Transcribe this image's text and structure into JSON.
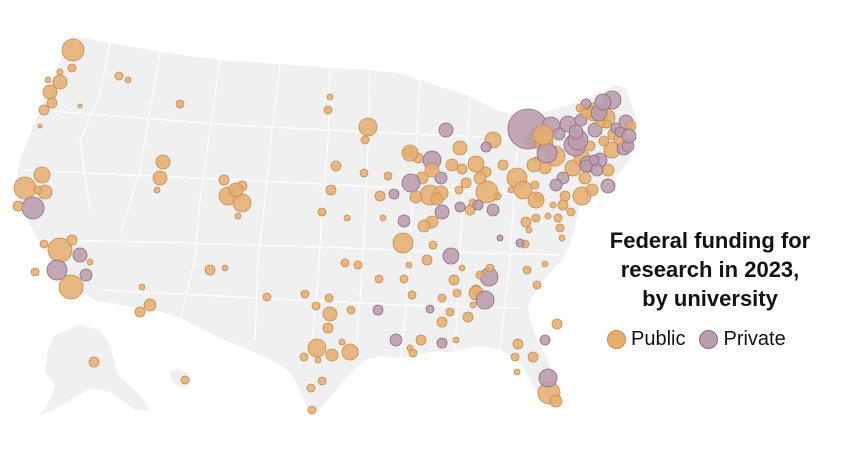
{
  "title_lines": [
    "Federal funding for",
    "research in 2023,",
    "by university"
  ],
  "legend": {
    "public_label": "Public",
    "private_label": "Private"
  },
  "colors": {
    "public_fill": "#e6ad6f",
    "public_stroke": "#c58d50",
    "private_fill": "#b99cad",
    "private_stroke": "#8a6e80",
    "land": "#f0f0f0",
    "borders": "#ffffff"
  },
  "markers": [
    {
      "type": "public",
      "r": 11
    },
    {
      "type": "public",
      "r": 7
    },
    {
      "type": "public",
      "r": 7
    },
    {
      "type": "public",
      "r": 5
    },
    {
      "type": "public",
      "r": 5
    },
    {
      "type": "public",
      "r": 4
    },
    {
      "type": "public",
      "r": 3
    },
    {
      "type": "public",
      "r": 3
    },
    {
      "type": "public",
      "r": 4
    },
    {
      "type": "public",
      "r": 3
    },
    {
      "type": "public",
      "r": 2
    },
    {
      "type": "public",
      "r": 2
    },
    {
      "type": "public",
      "r": 11
    },
    {
      "type": "public",
      "r": 8
    },
    {
      "type": "private",
      "r": 11
    },
    {
      "type": "public",
      "r": 7
    },
    {
      "type": "public",
      "r": 5
    },
    {
      "type": "public",
      "r": 4
    },
    {
      "type": "public",
      "r": 12
    },
    {
      "type": "private",
      "r": 10
    },
    {
      "type": "private",
      "r": 7
    },
    {
      "type": "public",
      "r": 12
    },
    {
      "type": "private",
      "r": 6
    },
    {
      "type": "public",
      "r": 5
    },
    {
      "type": "public",
      "r": 4
    },
    {
      "type": "public",
      "r": 4
    },
    {
      "type": "public",
      "r": 3
    },
    {
      "type": "public",
      "r": 7
    },
    {
      "type": "public",
      "r": 7
    },
    {
      "type": "public",
      "r": 3
    },
    {
      "type": "public",
      "r": 4
    },
    {
      "type": "public",
      "r": 9
    },
    {
      "type": "public",
      "r": 5
    },
    {
      "type": "public",
      "r": 9
    },
    {
      "type": "public",
      "r": 7
    },
    {
      "type": "public",
      "r": 5
    },
    {
      "type": "public",
      "r": 3
    },
    {
      "type": "public",
      "r": 5
    },
    {
      "type": "public",
      "r": 4
    },
    {
      "type": "public",
      "r": 3
    },
    {
      "type": "public",
      "r": 4
    },
    {
      "type": "public",
      "r": 4
    },
    {
      "type": "public",
      "r": 3
    },
    {
      "type": "public",
      "r": 5
    },
    {
      "type": "public",
      "r": 4
    },
    {
      "type": "public",
      "r": 3
    },
    {
      "type": "public",
      "r": 5
    },
    {
      "type": "public",
      "r": 3
    },
    {
      "type": "public",
      "r": 6
    },
    {
      "type": "public",
      "r": 5
    },
    {
      "type": "public",
      "r": 4
    },
    {
      "type": "public",
      "r": 4
    },
    {
      "type": "public",
      "r": 9
    },
    {
      "type": "public",
      "r": 7
    },
    {
      "type": "public",
      "r": 8
    },
    {
      "type": "public",
      "r": 4
    },
    {
      "type": "public",
      "r": 4
    },
    {
      "type": "public",
      "r": 4
    },
    {
      "type": "public",
      "r": 3
    },
    {
      "type": "private",
      "r": 8
    },
    {
      "type": "public",
      "r": 3
    },
    {
      "type": "public",
      "r": 9
    },
    {
      "type": "public",
      "r": 4
    },
    {
      "type": "private",
      "r": 9
    },
    {
      "type": "private",
      "r": 6
    },
    {
      "type": "public",
      "r": 5
    },
    {
      "type": "public",
      "r": 5
    },
    {
      "type": "private",
      "r": 6
    },
    {
      "type": "public",
      "r": 8
    },
    {
      "type": "public",
      "r": 10
    },
    {
      "type": "public",
      "r": 7
    },
    {
      "type": "private",
      "r": 7
    },
    {
      "type": "public",
      "r": 7
    },
    {
      "type": "public",
      "r": 6
    },
    {
      "type": "public",
      "r": 5
    },
    {
      "type": "public",
      "r": 8
    },
    {
      "type": "public",
      "r": 5
    },
    {
      "type": "public",
      "r": 5
    },
    {
      "type": "public",
      "r": 4
    },
    {
      "type": "public",
      "r": 3
    },
    {
      "type": "public",
      "r": 11
    },
    {
      "type": "public",
      "r": 5
    },
    {
      "type": "public",
      "r": 4
    },
    {
      "type": "private",
      "r": 6
    },
    {
      "type": "public",
      "r": 6
    },
    {
      "type": "public",
      "r": 10
    },
    {
      "type": "public",
      "r": 9
    },
    {
      "type": "public",
      "r": 5
    },
    {
      "type": "public",
      "r": 4
    },
    {
      "type": "public",
      "r": 3
    },
    {
      "type": "public",
      "r": 4
    },
    {
      "type": "public",
      "r": 4
    },
    {
      "type": "private",
      "r": 9
    },
    {
      "type": "public",
      "r": 4
    },
    {
      "type": "public",
      "r": 5
    },
    {
      "type": "public",
      "r": 3
    },
    {
      "type": "public",
      "r": 4
    },
    {
      "type": "public",
      "r": 5
    },
    {
      "type": "public",
      "r": 7
    },
    {
      "type": "public",
      "r": 4
    },
    {
      "type": "public",
      "r": 3
    },
    {
      "type": "public",
      "r": 4
    },
    {
      "type": "private",
      "r": 9
    },
    {
      "type": "public",
      "r": 5
    },
    {
      "type": "private",
      "r": 3
    },
    {
      "type": "private",
      "r": 4
    },
    {
      "type": "public",
      "r": 3
    },
    {
      "type": "public",
      "r": 4
    },
    {
      "type": "public",
      "r": 4
    },
    {
      "type": "public",
      "r": 5
    },
    {
      "type": "public",
      "r": 4
    },
    {
      "type": "public",
      "r": 3
    },
    {
      "type": "public",
      "r": 11
    },
    {
      "type": "public",
      "r": 6
    },
    {
      "type": "private",
      "r": 9
    },
    {
      "type": "public",
      "r": 5
    },
    {
      "type": "private",
      "r": 5
    },
    {
      "type": "public",
      "r": 5
    },
    {
      "type": "public",
      "r": 3
    },
    {
      "type": "public",
      "r": 4
    },
    {
      "type": "public",
      "r": 4
    },
    {
      "type": "public",
      "r": 3
    },
    {
      "type": "public",
      "r": 3
    },
    {
      "type": "public",
      "r": 5
    },
    {
      "type": "public",
      "r": 4
    },
    {
      "type": "public",
      "r": 8
    },
    {
      "type": "public",
      "r": 4
    },
    {
      "type": "public",
      "r": 3
    },
    {
      "type": "public",
      "r": 6
    },
    {
      "type": "public",
      "r": 9
    },
    {
      "type": "public",
      "r": 10
    },
    {
      "type": "public",
      "r": 8
    },
    {
      "type": "private",
      "r": 6
    },
    {
      "type": "private",
      "r": 6
    },
    {
      "type": "public",
      "r": 5
    },
    {
      "type": "public",
      "r": 9
    },
    {
      "type": "public",
      "r": 6
    },
    {
      "type": "public",
      "r": 8
    },
    {
      "type": "private",
      "r": 11
    },
    {
      "type": "public",
      "r": 5
    },
    {
      "type": "private",
      "r": 7
    },
    {
      "type": "public",
      "r": 10
    },
    {
      "type": "public",
      "r": 6
    },
    {
      "type": "private",
      "r": 10
    },
    {
      "type": "private",
      "r": 8
    },
    {
      "type": "public",
      "r": 8
    },
    {
      "type": "private",
      "r": 7
    },
    {
      "type": "public",
      "r": 6
    },
    {
      "type": "private",
      "r": 7
    },
    {
      "type": "public",
      "r": 6
    },
    {
      "type": "private",
      "r": 20
    },
    {
      "type": "public",
      "r": 9
    },
    {
      "type": "private",
      "r": 9
    },
    {
      "type": "private",
      "r": 6
    },
    {
      "type": "public",
      "r": 7
    },
    {
      "type": "private",
      "r": 10
    },
    {
      "type": "public",
      "r": 10
    },
    {
      "type": "private",
      "r": 8
    },
    {
      "type": "private",
      "r": 7
    },
    {
      "type": "public",
      "r": 9
    },
    {
      "type": "private",
      "r": 7
    },
    {
      "type": "public",
      "r": 7
    },
    {
      "type": "private",
      "r": 6
    },
    {
      "type": "private",
      "r": 9
    },
    {
      "type": "private",
      "r": 6
    },
    {
      "type": "public",
      "r": 7
    },
    {
      "type": "private",
      "r": 8
    },
    {
      "type": "private",
      "r": 8
    },
    {
      "type": "private",
      "r": 5
    },
    {
      "type": "private",
      "r": 5
    },
    {
      "type": "public",
      "r": 5
    },
    {
      "type": "private",
      "r": 5
    },
    {
      "type": "public",
      "r": 5
    },
    {
      "type": "private",
      "r": 7
    },
    {
      "type": "private",
      "r": 5
    },
    {
      "type": "private",
      "r": 6
    },
    {
      "type": "private",
      "r": 7
    },
    {
      "type": "private",
      "r": 6
    },
    {
      "type": "public",
      "r": 4
    },
    {
      "type": "public",
      "r": 4
    },
    {
      "type": "public",
      "r": 8
    },
    {
      "type": "private",
      "r": 5
    },
    {
      "type": "public",
      "r": 6
    },
    {
      "type": "public",
      "r": 5
    },
    {
      "type": "public",
      "r": 4
    },
    {
      "type": "private",
      "r": 5
    },
    {
      "type": "private",
      "r": 5
    },
    {
      "type": "public",
      "r": 7
    },
    {
      "type": "public",
      "r": 6
    },
    {
      "type": "private",
      "r": 9
    },
    {
      "type": "public",
      "r": 6
    },
    {
      "type": "private",
      "r": 7
    },
    {
      "type": "public",
      "r": 6
    },
    {
      "type": "private",
      "r": 5
    },
    {
      "type": "public",
      "r": 5
    },
    {
      "type": "public",
      "r": 10
    },
    {
      "type": "public",
      "r": 6
    },
    {
      "type": "public",
      "r": 5
    },
    {
      "type": "public",
      "r": 4
    },
    {
      "type": "public",
      "r": 4
    },
    {
      "type": "private",
      "r": 4
    },
    {
      "type": "public",
      "r": 5
    },
    {
      "type": "public",
      "r": 4
    },
    {
      "type": "public",
      "r": 4
    },
    {
      "type": "public",
      "r": 3
    },
    {
      "type": "private",
      "r": 5
    },
    {
      "type": "public",
      "r": 4
    },
    {
      "type": "public",
      "r": 5
    },
    {
      "type": "private",
      "r": 6
    },
    {
      "type": "private",
      "r": 5
    },
    {
      "type": "public",
      "r": 4
    },
    {
      "type": "public",
      "r": 4
    },
    {
      "type": "public",
      "r": 3
    },
    {
      "type": "public",
      "r": 5
    },
    {
      "type": "public",
      "r": 4
    },
    {
      "type": "public",
      "r": 4
    },
    {
      "type": "public",
      "r": 3
    },
    {
      "type": "public",
      "r": 6
    },
    {
      "type": "public",
      "r": 4
    },
    {
      "type": "public",
      "r": 4
    },
    {
      "type": "public",
      "r": 4
    },
    {
      "type": "public",
      "r": 5
    },
    {
      "type": "public",
      "r": 4
    },
    {
      "type": "public",
      "r": 3
    }
  ]
}
